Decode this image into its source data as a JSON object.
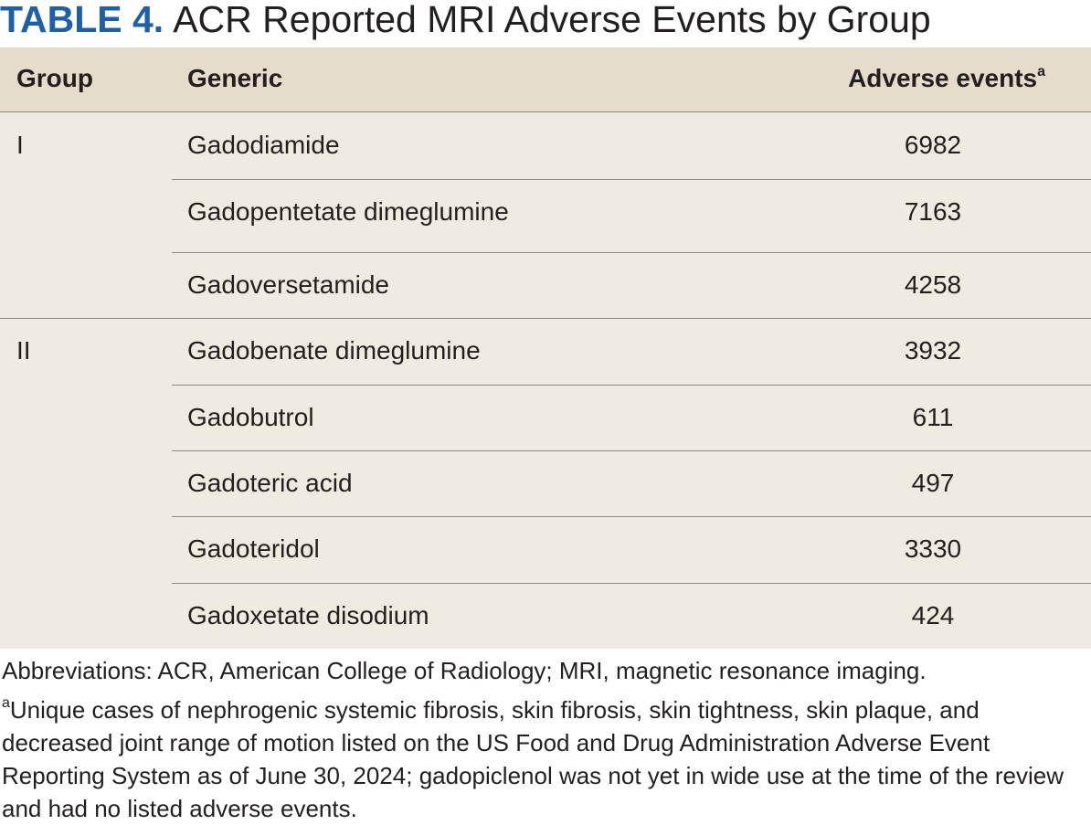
{
  "title": {
    "label": "TABLE 4.",
    "text": "ACR Reported MRI Adverse Events by Group"
  },
  "table": {
    "columns": [
      "Group",
      "Generic",
      "Adverse events"
    ],
    "header_note": "a",
    "groups": [
      {
        "name": "I",
        "rows": [
          [
            "Gadodiamide",
            6982
          ],
          [
            "Gadopentetate dimeglumine",
            7163
          ],
          [
            "Gadoversetamide",
            4258
          ]
        ]
      },
      {
        "name": "II",
        "rows": [
          [
            "Gadobenate dimeglumine",
            3932
          ],
          [
            "Gadobutrol",
            611
          ],
          [
            "Gadoteric acid",
            497
          ],
          [
            "Gadoteridol",
            3330
          ],
          [
            "Gadoxetate disodium",
            424
          ]
        ]
      }
    ]
  },
  "footnotes": {
    "abbreviations": "Abbreviations: ACR, American College of Radiology; MRI, magnetic resonance imaging.",
    "note_marker": "a",
    "note": "Unique cases of nephrogenic systemic fibrosis, skin fibrosis, skin tightness, skin plaque, and decreased joint range of motion listed on the US Food and Drug Administration Adverse Event Reporting System as of June 30, 2024; gadopiclenol was not yet in wide use at the time of the review and had no listed adverse events."
  }
}
